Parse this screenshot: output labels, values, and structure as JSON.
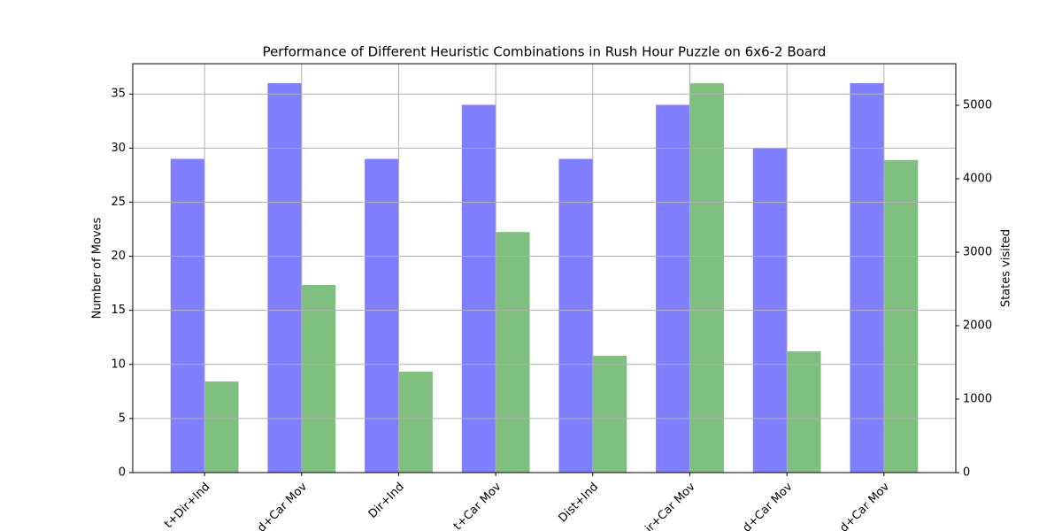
{
  "chart_data": {
    "type": "bar",
    "title": "Performance of Different Heuristic Combinations in Rush Hour Puzzle on 6x6-2 Board",
    "y_label": "Number of Moves",
    "y2_label": "States visited",
    "categories": [
      "t+Dir+Ind",
      "d+Car Mov",
      "Dir+Ind",
      "t+Car Mov",
      "Dist+Ind",
      "ir+Car Mov",
      "d+Car Mov",
      "d+Car Mov"
    ],
    "series": [
      {
        "color": "#0000ff",
        "values": [
          29,
          36,
          29,
          34,
          29,
          34,
          30,
          36
        ]
      },
      {
        "color": "#008000",
        "axis": "y2",
        "values": [
          1240,
          2555,
          1375,
          3275,
          1590,
          5300,
          1650,
          4255
        ]
      }
    ],
    "ylim": [
      0,
      37.8
    ],
    "yticks": [
      0,
      5,
      10,
      15,
      20,
      25,
      30,
      35
    ],
    "y2lim": [
      0,
      5566
    ],
    "y2ticks": [
      0,
      1000,
      2000,
      3000,
      4000,
      5000
    ],
    "grid": true
  }
}
